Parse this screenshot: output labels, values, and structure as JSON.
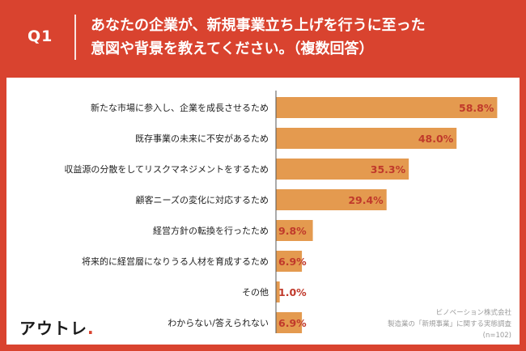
{
  "header": {
    "qnum": "Q1",
    "question_line1": "あなたの企業が、新規事業立ち上げを行うに至った",
    "question_line2": "意図や背景を教えてください。（複数回答）"
  },
  "logo": {
    "text": "アウトレ",
    "dot": "."
  },
  "source": {
    "line1": "ビノベーション株式会社",
    "line2": "製造業の「新規事業」に関する実態調査",
    "line3": "(n=102)"
  },
  "colors": {
    "background": "#d9432f",
    "bar": "#e49a4f",
    "value_text": "#c0392b",
    "text": "#222222"
  },
  "chart_data": {
    "type": "bar",
    "orientation": "horizontal",
    "title": "",
    "xlabel": "",
    "ylabel": "",
    "xlim": [
      0,
      60
    ],
    "grid": false,
    "categories": [
      "新たな市場に参入し、企業を成長させるため",
      "既存事業の未来に不安があるため",
      "収益源の分散をしてリスクマネジメントをするため",
      "顧客ニーズの変化に対応するため",
      "経営方針の転換を行ったため",
      "将来的に経営層になりうる人材を育成するため",
      "その他",
      "わからない/答えられない"
    ],
    "values": [
      58.8,
      48.0,
      35.3,
      29.4,
      9.8,
      6.9,
      1.0,
      6.9
    ],
    "value_labels": [
      "58.8%",
      "48.0%",
      "35.3%",
      "29.4%",
      "9.8%",
      "6.9%",
      "1.0%",
      "6.9%"
    ]
  }
}
